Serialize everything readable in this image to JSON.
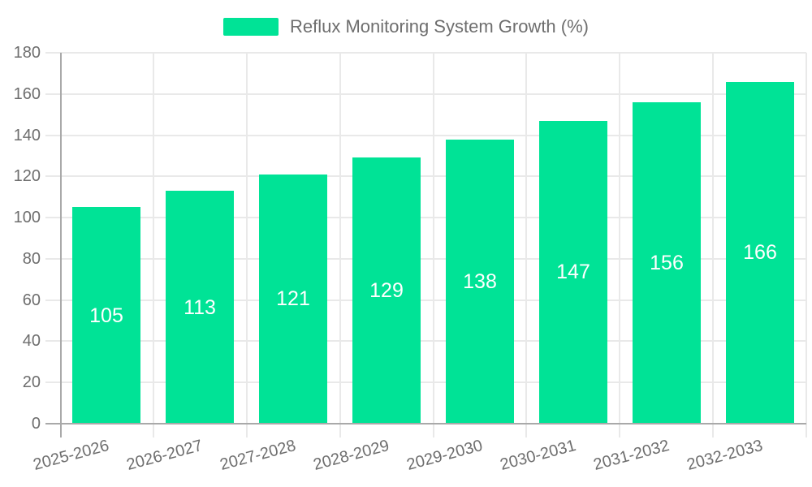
{
  "legend": {
    "label": "Reflux Monitoring System Growth (%)"
  },
  "colors": {
    "bar": "#00E396",
    "axis_line": "#a9a9a9",
    "grid_line": "#e9e9e9",
    "label_text": "#6e6e6e",
    "value_text": "#ffffff",
    "background": "#ffffff"
  },
  "chart_data": {
    "type": "bar",
    "title": "Reflux Monitoring System Growth (%)",
    "categories": [
      "2025-2026",
      "2026-2027",
      "2027-2028",
      "2028-2029",
      "2029-2030",
      "2030-2031",
      "2031-2032",
      "2032-2033"
    ],
    "values": [
      105,
      113,
      121,
      129,
      138,
      147,
      156,
      166
    ],
    "xlabel": "",
    "ylabel": "",
    "ylim": [
      0,
      180
    ],
    "yticks": [
      0,
      20,
      40,
      60,
      80,
      100,
      120,
      140,
      160,
      180
    ],
    "grid": true,
    "legend_position": "top",
    "bar_color": "#00E396",
    "value_label_position": "inside-center",
    "x_label_rotation_deg": -15
  }
}
